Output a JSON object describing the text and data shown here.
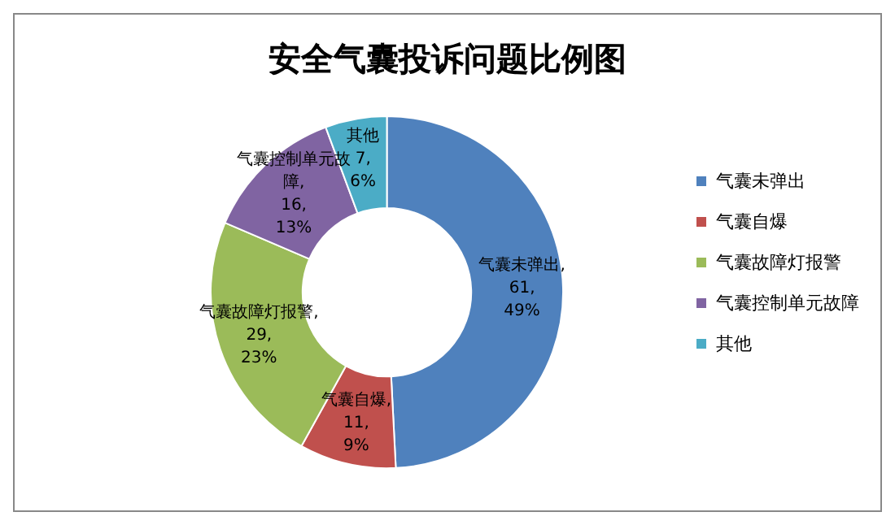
{
  "chart_data": {
    "type": "donut",
    "title": "安全气囊投诉问题比例图",
    "categories": [
      "气囊未弹出",
      "气囊自爆",
      "气囊故障灯报警",
      "气囊控制单元故障",
      "其他"
    ],
    "values": [
      61,
      11,
      29,
      16,
      7
    ],
    "value_labels": [
      "气囊未弹出,\n61,\n49%",
      "气囊自爆,\n11,\n9%",
      "气囊故障灯报警,\n29,\n23%",
      "气囊控制单元故障,\n16,\n13%",
      "其他\n7,\n6%"
    ],
    "colors": [
      "#4f81bd",
      "#c0504d",
      "#9bbb59",
      "#8064a2",
      "#4bacc6"
    ],
    "legend": "right"
  }
}
